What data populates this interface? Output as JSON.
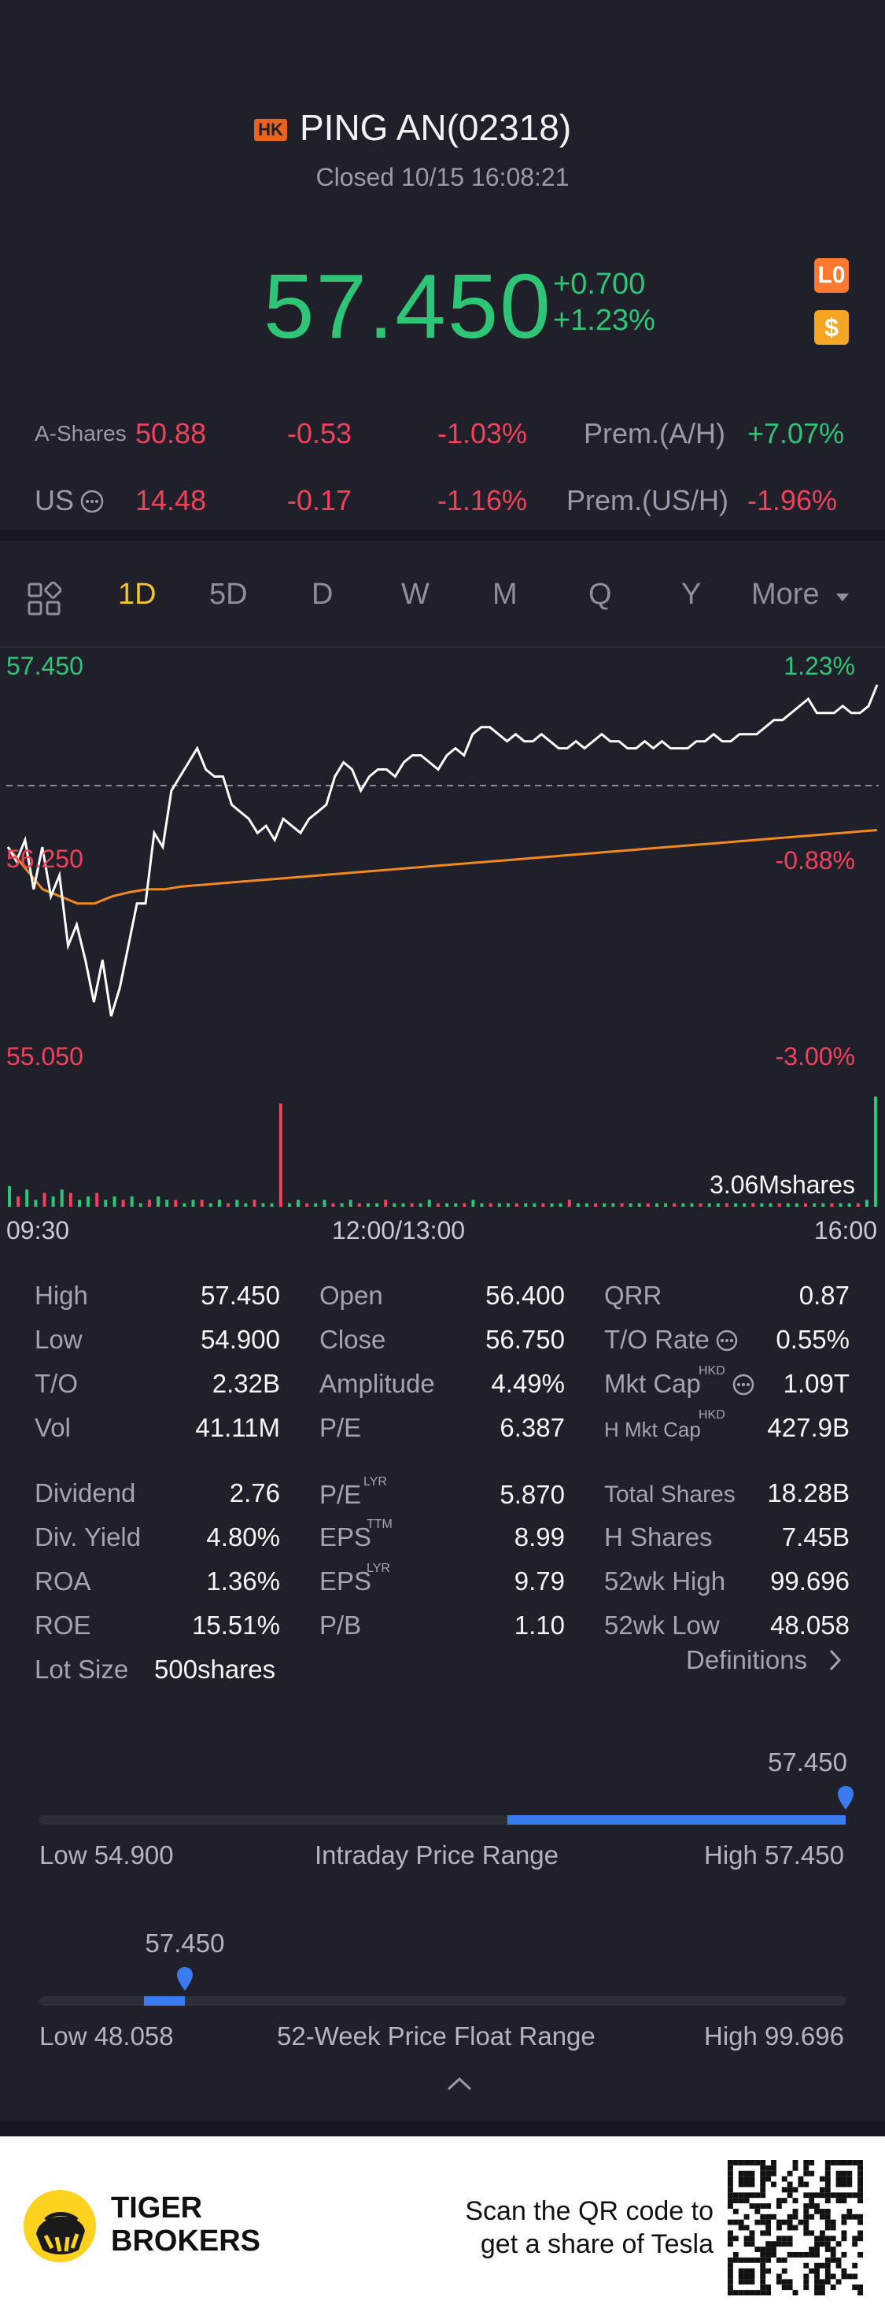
{
  "header": {
    "exchange_badge": "HK",
    "title": "PING AN(02318)",
    "status": "Closed 10/15 16:08:21",
    "price": "57.450",
    "change": "+0.700",
    "change_pct": "+1.23%",
    "badge_lo": "L0",
    "badge_dollar": "$"
  },
  "cross_listings": {
    "a_shares": {
      "label": "A-Shares",
      "price": "50.88",
      "change": "-0.53",
      "change_pct": "-1.03%",
      "prem_label": "Prem.(A/H)",
      "prem": "+7.07%"
    },
    "us": {
      "label": "US",
      "price": "14.48",
      "change": "-0.17",
      "change_pct": "-1.16%",
      "prem_label": "Prem.(US/H)",
      "prem": "-1.96%"
    }
  },
  "tabs": [
    "1D",
    "5D",
    "D",
    "W",
    "M",
    "Q",
    "Y",
    "More"
  ],
  "active_tab": "1D",
  "chart_data": {
    "type": "line",
    "y_left_labels": {
      "top": "57.450",
      "mid": "56.250",
      "bottom": "55.050"
    },
    "y_right_labels": {
      "top": "1.23%",
      "mid": "-0.88%",
      "bottom": "-3.00%"
    },
    "ylim": [
      55.05,
      57.45
    ],
    "prev_close": 56.75,
    "x_labels": [
      "09:30",
      "12:00/13:00",
      "16:00"
    ],
    "volume_label": "3.06Mshares",
    "series": [
      {
        "values": [
          56.3,
          56.2,
          56.35,
          56.0,
          56.3,
          55.95,
          56.1,
          55.6,
          55.75,
          55.5,
          55.2,
          55.5,
          55.1,
          55.3,
          55.6,
          55.9,
          55.9,
          56.4,
          56.3,
          56.7,
          56.8,
          56.9,
          57.0,
          56.85,
          56.8,
          56.8,
          56.6,
          56.55,
          56.5,
          56.4,
          56.45,
          56.35,
          56.5,
          56.45,
          56.4,
          56.5,
          56.55,
          56.6,
          56.8,
          56.9,
          56.85,
          56.7,
          56.8,
          56.85,
          56.85,
          56.8,
          56.9,
          56.95,
          56.95,
          56.9,
          56.85,
          56.95,
          57.0,
          56.95,
          57.1,
          57.15,
          57.15,
          57.1,
          57.05,
          57.1,
          57.05,
          57.05,
          57.1,
          57.05,
          57.0,
          57.0,
          57.05,
          57.0,
          57.05,
          57.1,
          57.05,
          57.05,
          57.0,
          57.0,
          57.05,
          57.0,
          57.05,
          57.0,
          57.0,
          57.0,
          57.05,
          57.05,
          57.1,
          57.05,
          57.05,
          57.1,
          57.1,
          57.1,
          57.15,
          57.2,
          57.2,
          57.25,
          57.3,
          57.35,
          57.25,
          57.25,
          57.25,
          57.3,
          57.25,
          57.25,
          57.3,
          57.45
        ]
      },
      {
        "values": [
          56.3,
          56.15,
          56.0,
          55.95,
          55.9,
          55.9,
          55.95,
          55.98,
          56.0,
          56.0,
          56.02,
          56.03,
          56.04,
          56.05,
          56.06,
          56.07,
          56.08,
          56.09,
          56.1,
          56.11,
          56.12,
          56.13,
          56.14,
          56.15,
          56.16,
          56.17,
          56.18,
          56.19,
          56.2,
          56.21,
          56.22,
          56.23,
          56.24,
          56.25,
          56.26,
          56.27,
          56.28,
          56.29,
          56.3,
          56.31,
          56.32,
          56.33,
          56.34,
          56.35,
          56.36,
          56.37,
          56.38,
          56.39,
          56.4,
          56.41,
          56.42
        ]
      }
    ],
    "volumes": [
      6,
      3,
      5,
      2,
      4,
      3,
      5,
      4,
      2,
      3,
      4,
      2,
      3,
      2,
      3,
      1,
      2,
      3,
      2,
      2,
      1,
      2,
      2,
      1,
      2,
      1,
      2,
      1,
      2,
      1,
      1,
      30,
      1,
      2,
      1,
      1,
      2,
      1,
      1,
      2,
      1,
      1,
      1,
      2,
      1,
      1,
      1,
      1,
      2,
      1,
      1,
      1,
      1,
      2,
      1,
      1,
      1,
      1,
      1,
      1,
      1,
      1,
      1,
      1,
      2,
      1,
      1,
      1,
      1,
      1,
      1,
      1,
      1,
      1,
      1,
      1,
      1,
      1,
      1,
      1,
      1,
      1,
      1,
      1,
      1,
      1,
      1,
      1,
      1,
      1,
      1,
      1,
      1,
      1,
      1,
      1,
      1,
      1,
      2,
      32
    ]
  },
  "stats": {
    "col1": [
      {
        "label": "High",
        "value": "57.450"
      },
      {
        "label": "Low",
        "value": "54.900"
      },
      {
        "label": "T/O",
        "value": "2.32B"
      },
      {
        "label": "Vol",
        "value": "41.11M"
      },
      {
        "label": "Dividend",
        "value": "2.76"
      },
      {
        "label": "Div. Yield",
        "value": "4.80%"
      },
      {
        "label": "ROA",
        "value": "1.36%"
      },
      {
        "label": "ROE",
        "value": "15.51%"
      },
      {
        "label": "Lot Size",
        "value": "500shares"
      }
    ],
    "col2": [
      {
        "label": "Open",
        "value": "56.400"
      },
      {
        "label": "Close",
        "value": "56.750"
      },
      {
        "label": "Amplitude",
        "value": "4.49%"
      },
      {
        "label": "P/E",
        "value": "6.387"
      },
      {
        "label": "P/E",
        "sup": "LYR",
        "value": "5.870"
      },
      {
        "label": "EPS",
        "sup": "TTM",
        "value": "8.99"
      },
      {
        "label": "EPS",
        "sup": "LYR",
        "value": "9.79"
      },
      {
        "label": "P/B",
        "value": "1.10"
      }
    ],
    "col3": [
      {
        "label": "QRR",
        "value": "0.87"
      },
      {
        "label": "T/O Rate",
        "value": "0.55%"
      },
      {
        "label": "Mkt Cap",
        "sup": "HKD",
        "value": "1.09T"
      },
      {
        "label": "H Mkt Cap",
        "sup": "HKD",
        "value": "427.9B"
      },
      {
        "label": "Total Shares",
        "value": "18.28B"
      },
      {
        "label": "H Shares",
        "value": "7.45B"
      },
      {
        "label": "52wk High",
        "value": "99.696"
      },
      {
        "label": "52wk Low",
        "value": "48.058"
      }
    ],
    "definitions_link": "Definitions"
  },
  "intraday_range": {
    "current": "57.450",
    "low": "Low 54.900",
    "title": "Intraday Price Range",
    "high": "High 57.450",
    "fill_from": 0.58,
    "fill_to": 1.0,
    "marker": 1.0
  },
  "week52_range": {
    "current": "57.450",
    "low": "Low 48.058",
    "title": "52-Week Price Float Range",
    "high": "High 99.696",
    "fill_from": 0.13,
    "fill_to": 0.18,
    "marker": 0.18
  },
  "footer": {
    "brand_line1": "TIGER",
    "brand_line2": "BROKERS",
    "promo_line1": "Scan the QR code to",
    "promo_line2": "get a share of Tesla"
  },
  "colors": {
    "up": "#2ec576",
    "down": "#f2425b",
    "accent": "#f0c330",
    "avg_line": "#f0891f",
    "range_bar": "#3a7bf0"
  }
}
